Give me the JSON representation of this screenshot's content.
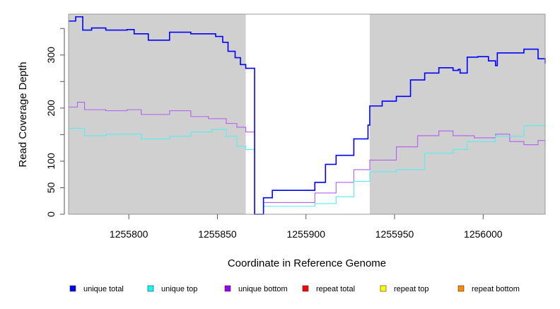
{
  "chart_data": {
    "type": "line",
    "title": "",
    "xlabel": "Coordinate in Reference Genome",
    "ylabel": "Read Coverage Depth",
    "xlim": [
      1255766,
      1256035
    ],
    "ylim": [
      0,
      377
    ],
    "x_ticks": [
      1255800,
      1255850,
      1255900,
      1255950,
      1256000
    ],
    "x_tick_labels": [
      "1255800",
      "1255850",
      "1255900",
      "1255950",
      "1256000"
    ],
    "y_ticks": [
      0,
      50,
      100,
      150,
      200,
      250,
      300,
      350
    ],
    "y_tick_labels": [
      "0",
      "50",
      "100",
      "",
      "200",
      "",
      "300",
      ""
    ],
    "shaded_regions": [
      [
        1255766,
        1255866
      ],
      [
        1255936,
        1256035
      ]
    ],
    "shade_color": "#d0d0d0",
    "legend_position": "bottom",
    "series": [
      {
        "name": "unique total",
        "color": "#0000ff",
        "line_color": "#0000ff",
        "x": [
          1255766,
          1255770,
          1255774,
          1255779,
          1255787,
          1255799,
          1255803,
          1255811,
          1255823,
          1255835,
          1255845,
          1255849,
          1255853,
          1255856,
          1255860,
          1255863,
          1255866,
          1255871,
          1255876,
          1255881,
          1255905,
          1255911,
          1255917,
          1255927,
          1255935,
          1255936,
          1255943,
          1255951,
          1255959,
          1255967,
          1255975,
          1255983,
          1255986,
          1255987,
          1255991,
          1255997,
          1256003,
          1256007,
          1256008,
          1256015,
          1256023,
          1256031,
          1256035
        ],
        "y": [
          364,
          372,
          347,
          351,
          347,
          348,
          340,
          328,
          343,
          340,
          340,
          335,
          324,
          307,
          295,
          282,
          275,
          0,
          31,
          45,
          60,
          94,
          111,
          142,
          168,
          204,
          213,
          222,
          253,
          266,
          276,
          271,
          273,
          266,
          296,
          297,
          289,
          280,
          304,
          304,
          311,
          293,
          284
        ]
      },
      {
        "name": "unique top",
        "color": "#00ffff",
        "line_color": "#55eeee",
        "x": [
          1255766,
          1255775,
          1255787,
          1255807,
          1255823,
          1255835,
          1255847,
          1255855,
          1255861,
          1255866,
          1255871,
          1255876,
          1255905,
          1255917,
          1255927,
          1255936,
          1255951,
          1255967,
          1255983,
          1255991,
          1256007,
          1256008,
          1256023,
          1256035
        ],
        "y": [
          162,
          148,
          151,
          142,
          147,
          155,
          160,
          147,
          128,
          122,
          0,
          15,
          20,
          33,
          62,
          80,
          84,
          115,
          122,
          137,
          148,
          147,
          167,
          171
        ]
      },
      {
        "name": "unique bottom",
        "color": "#9900ee",
        "line_color": "#b060f0",
        "x": [
          1255766,
          1255771,
          1255775,
          1255787,
          1255799,
          1255807,
          1255823,
          1255835,
          1255845,
          1255855,
          1255861,
          1255866,
          1255871,
          1255876,
          1255905,
          1255917,
          1255927,
          1255936,
          1255951,
          1255963,
          1255975,
          1255983,
          1255995,
          1256007,
          1256015,
          1256023,
          1256031,
          1256035
        ],
        "y": [
          202,
          211,
          197,
          195,
          197,
          188,
          195,
          184,
          180,
          171,
          164,
          155,
          0,
          22,
          40,
          60,
          84,
          102,
          127,
          148,
          157,
          148,
          144,
          151,
          137,
          131,
          139,
          128
        ]
      },
      {
        "name": "repeat total",
        "color": "#ff0000",
        "line_color": "#ff0000",
        "x": [
          1255766,
          1256035
        ],
        "y": [
          0,
          0
        ]
      },
      {
        "name": "repeat top",
        "color": "#ffff00",
        "line_color": "#ffff00",
        "x": [
          1255766,
          1256035
        ],
        "y": [
          0,
          0
        ]
      },
      {
        "name": "repeat bottom",
        "color": "#ff8800",
        "line_color": "#cc7733",
        "x": [
          1255766,
          1256035
        ],
        "y": [
          0,
          0
        ]
      }
    ]
  }
}
